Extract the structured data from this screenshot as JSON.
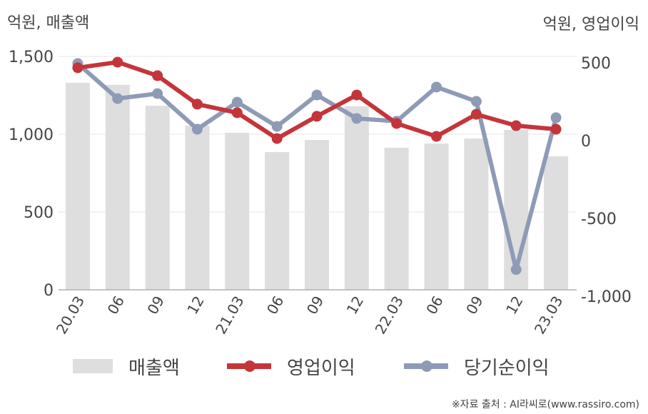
{
  "chart_data": {
    "type": "bar+line",
    "title": "",
    "categories": [
      "20.03",
      "06",
      "09",
      "12",
      "21.03",
      "06",
      "09",
      "12",
      "22.03",
      "06",
      "09",
      "12",
      "23.03"
    ],
    "series": [
      {
        "name": "매출액",
        "type": "bar",
        "axis": "left",
        "color": "#dedede",
        "values": [
          1330,
          1317,
          1183,
          1055,
          1009,
          885,
          963,
          1179,
          913,
          940,
          972,
          1028,
          858
        ]
      },
      {
        "name": "영업이익",
        "type": "line",
        "axis": "right",
        "color": "#c4353a",
        "values": [
          427,
          463,
          376,
          193,
          138,
          -28,
          115,
          252,
          69,
          -14,
          128,
          55,
          32
        ]
      },
      {
        "name": "당기순이익",
        "type": "line",
        "axis": "right",
        "color": "#8e9bb7",
        "values": [
          454,
          229,
          261,
          32,
          206,
          50,
          252,
          101,
          83,
          303,
          211,
          -870,
          106
        ]
      }
    ],
    "left_axis": {
      "label": "억원, 매출액",
      "ylim": [
        0,
        1500
      ],
      "ticks": [
        0,
        500,
        1000,
        1500
      ],
      "tick_labels": [
        "0",
        "500",
        "1,000",
        "1,500"
      ]
    },
    "right_axis": {
      "label": "억원, 영업이익",
      "ylim": [
        -1000,
        500
      ],
      "ticks": [
        -1000,
        -500,
        0,
        500
      ],
      "tick_labels": [
        "-1,000",
        "-500",
        "0",
        "500"
      ]
    },
    "grid": true,
    "legend_position": "bottom",
    "xlabel": "",
    "ylabel": "억원, 매출액"
  },
  "header": {
    "left_unit": "억원, 매출액",
    "right_unit": "억원, 영업이익"
  },
  "legend": {
    "items": [
      {
        "label": "매출액"
      },
      {
        "label": "영업이익"
      },
      {
        "label": "당기순이익"
      }
    ]
  },
  "footer": {
    "source": "※자료 출처 : AI라씨로(www.rassiro.com)"
  }
}
